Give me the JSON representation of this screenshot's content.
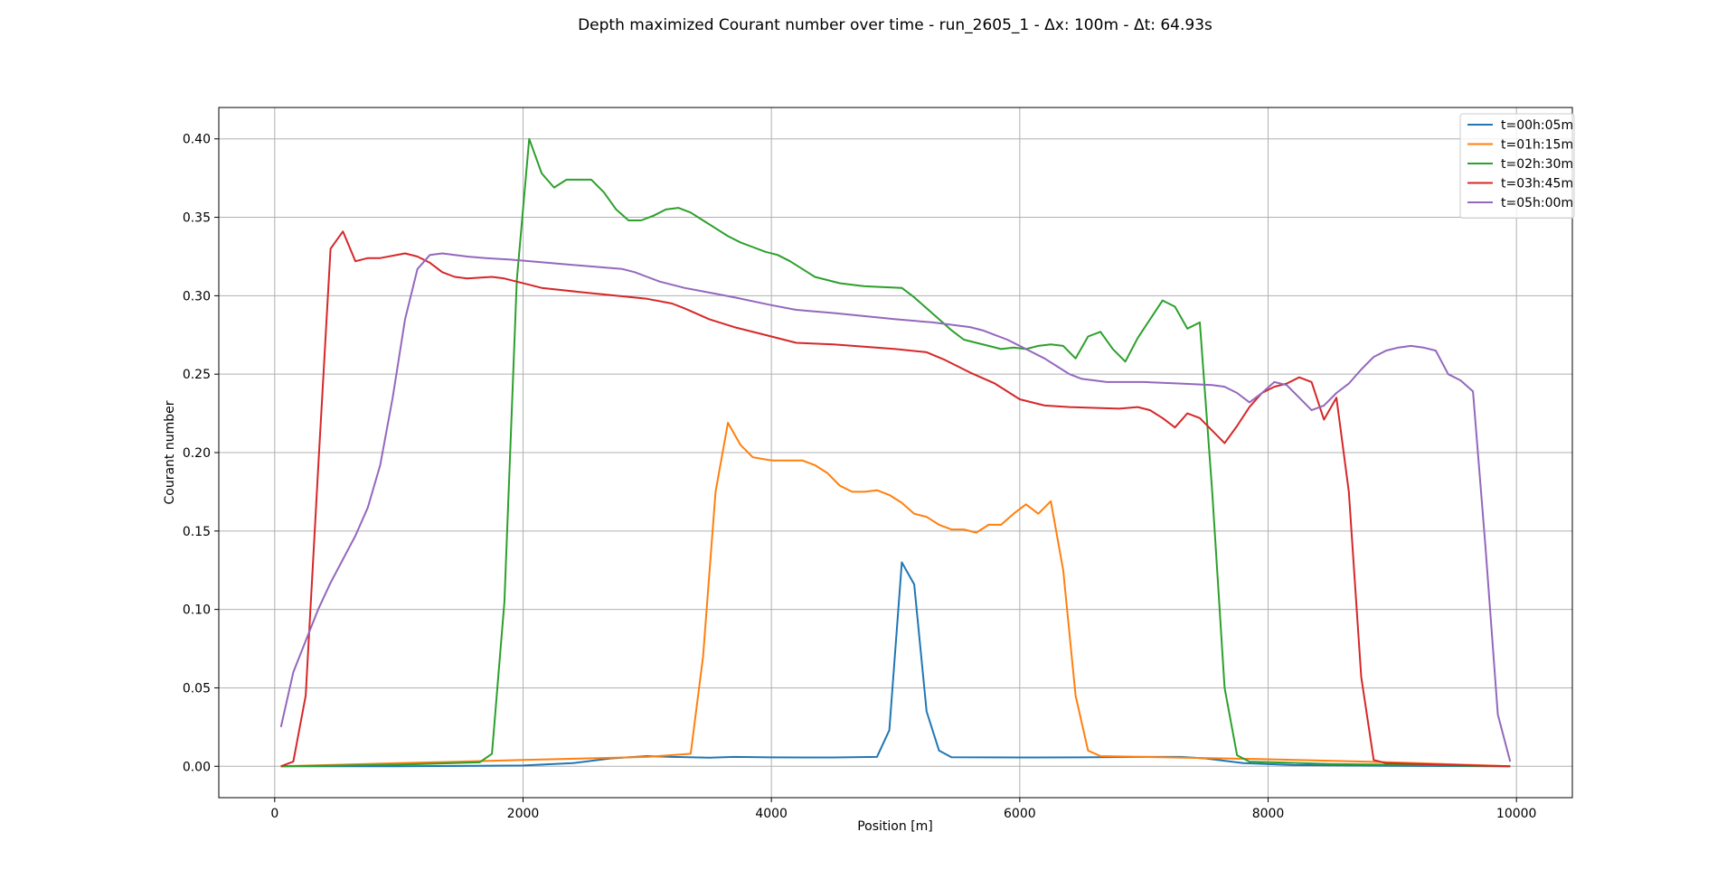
{
  "chart_data": {
    "type": "line",
    "title": "Depth maximized Courant number over time - run_2605_1 - Δx: 100m - Δt: 64.93s",
    "xlabel": "Position [m]",
    "ylabel": "Courant number",
    "xlim": [
      -450,
      10450
    ],
    "ylim": [
      -0.02,
      0.42
    ],
    "xticks": [
      0,
      2000,
      4000,
      6000,
      8000,
      10000
    ],
    "xtick_labels": [
      "0",
      "2000",
      "4000",
      "6000",
      "8000",
      "10000"
    ],
    "yticks": [
      0.0,
      0.05,
      0.1,
      0.15,
      0.2,
      0.25,
      0.3,
      0.35,
      0.4
    ],
    "ytick_labels": [
      "0.00",
      "0.05",
      "0.10",
      "0.15",
      "0.20",
      "0.25",
      "0.30",
      "0.35",
      "0.40"
    ],
    "grid": true,
    "legend_position": "top-right",
    "series": [
      {
        "name": "t=00h:05m",
        "color": "#1f77b4",
        "points": [
          [
            50,
            0.0
          ],
          [
            1000,
            0.0
          ],
          [
            2000,
            0.0005
          ],
          [
            2400,
            0.002
          ],
          [
            2700,
            0.005
          ],
          [
            3000,
            0.0065
          ],
          [
            3200,
            0.006
          ],
          [
            3500,
            0.0055
          ],
          [
            3700,
            0.006
          ],
          [
            4000,
            0.0057
          ],
          [
            4500,
            0.0056
          ],
          [
            4850,
            0.006
          ],
          [
            4950,
            0.023
          ],
          [
            5050,
            0.13
          ],
          [
            5150,
            0.116
          ],
          [
            5250,
            0.035
          ],
          [
            5350,
            0.01
          ],
          [
            5450,
            0.0058
          ],
          [
            6000,
            0.0056
          ],
          [
            6500,
            0.0057
          ],
          [
            7000,
            0.006
          ],
          [
            7300,
            0.006
          ],
          [
            7500,
            0.005
          ],
          [
            7800,
            0.002
          ],
          [
            8200,
            0.0008
          ],
          [
            9000,
            0.0003
          ],
          [
            9950,
            0.0
          ]
        ]
      },
      {
        "name": "t=01h:15m",
        "color": "#ff7f0e",
        "points": [
          [
            50,
            0.0
          ],
          [
            1000,
            0.002
          ],
          [
            2000,
            0.004
          ],
          [
            3000,
            0.006
          ],
          [
            3350,
            0.008
          ],
          [
            3450,
            0.07
          ],
          [
            3550,
            0.175
          ],
          [
            3650,
            0.219
          ],
          [
            3750,
            0.205
          ],
          [
            3850,
            0.197
          ],
          [
            4000,
            0.195
          ],
          [
            4250,
            0.195
          ],
          [
            4350,
            0.192
          ],
          [
            4450,
            0.187
          ],
          [
            4550,
            0.179
          ],
          [
            4650,
            0.175
          ],
          [
            4750,
            0.175
          ],
          [
            4850,
            0.176
          ],
          [
            4950,
            0.173
          ],
          [
            5050,
            0.168
          ],
          [
            5150,
            0.161
          ],
          [
            5250,
            0.159
          ],
          [
            5350,
            0.154
          ],
          [
            5450,
            0.151
          ],
          [
            5550,
            0.151
          ],
          [
            5650,
            0.149
          ],
          [
            5750,
            0.154
          ],
          [
            5850,
            0.154
          ],
          [
            5950,
            0.161
          ],
          [
            6050,
            0.167
          ],
          [
            6150,
            0.161
          ],
          [
            6250,
            0.169
          ],
          [
            6350,
            0.125
          ],
          [
            6450,
            0.045
          ],
          [
            6550,
            0.01
          ],
          [
            6650,
            0.0065
          ],
          [
            7000,
            0.006
          ],
          [
            8000,
            0.0045
          ],
          [
            9000,
            0.0025
          ],
          [
            9950,
            0.0
          ]
        ]
      },
      {
        "name": "t=02h:30m",
        "color": "#2ca02c",
        "points": [
          [
            50,
            0.0
          ],
          [
            1000,
            0.001
          ],
          [
            1650,
            0.0025
          ],
          [
            1750,
            0.008
          ],
          [
            1850,
            0.105
          ],
          [
            1950,
            0.31
          ],
          [
            2050,
            0.4
          ],
          [
            2150,
            0.378
          ],
          [
            2250,
            0.369
          ],
          [
            2350,
            0.374
          ],
          [
            2550,
            0.374
          ],
          [
            2650,
            0.366
          ],
          [
            2750,
            0.355
          ],
          [
            2850,
            0.348
          ],
          [
            2950,
            0.348
          ],
          [
            3050,
            0.351
          ],
          [
            3150,
            0.355
          ],
          [
            3250,
            0.356
          ],
          [
            3350,
            0.353
          ],
          [
            3450,
            0.348
          ],
          [
            3550,
            0.343
          ],
          [
            3650,
            0.338
          ],
          [
            3750,
            0.334
          ],
          [
            3850,
            0.331
          ],
          [
            3950,
            0.328
          ],
          [
            4050,
            0.326
          ],
          [
            4150,
            0.322
          ],
          [
            4250,
            0.317
          ],
          [
            4350,
            0.312
          ],
          [
            4450,
            0.31
          ],
          [
            4550,
            0.308
          ],
          [
            4650,
            0.307
          ],
          [
            4750,
            0.306
          ],
          [
            5050,
            0.305
          ],
          [
            5150,
            0.299
          ],
          [
            5250,
            0.292
          ],
          [
            5350,
            0.285
          ],
          [
            5450,
            0.278
          ],
          [
            5550,
            0.272
          ],
          [
            5650,
            0.27
          ],
          [
            5750,
            0.268
          ],
          [
            5850,
            0.266
          ],
          [
            5950,
            0.267
          ],
          [
            6050,
            0.266
          ],
          [
            6150,
            0.268
          ],
          [
            6250,
            0.269
          ],
          [
            6350,
            0.268
          ],
          [
            6450,
            0.26
          ],
          [
            6550,
            0.274
          ],
          [
            6650,
            0.277
          ],
          [
            6750,
            0.266
          ],
          [
            6850,
            0.258
          ],
          [
            6950,
            0.273
          ],
          [
            7050,
            0.285
          ],
          [
            7150,
            0.297
          ],
          [
            7250,
            0.293
          ],
          [
            7350,
            0.279
          ],
          [
            7450,
            0.283
          ],
          [
            7550,
            0.175
          ],
          [
            7650,
            0.05
          ],
          [
            7750,
            0.007
          ],
          [
            7850,
            0.003
          ],
          [
            8500,
            0.0015
          ],
          [
            9950,
            0.0
          ]
        ]
      },
      {
        "name": "t=03h:45m",
        "color": "#d62728",
        "points": [
          [
            50,
            0.0
          ],
          [
            150,
            0.003
          ],
          [
            250,
            0.045
          ],
          [
            350,
            0.19
          ],
          [
            450,
            0.33
          ],
          [
            550,
            0.341
          ],
          [
            650,
            0.322
          ],
          [
            750,
            0.324
          ],
          [
            850,
            0.324
          ],
          [
            1050,
            0.327
          ],
          [
            1150,
            0.325
          ],
          [
            1250,
            0.321
          ],
          [
            1350,
            0.315
          ],
          [
            1450,
            0.312
          ],
          [
            1550,
            0.311
          ],
          [
            1750,
            0.312
          ],
          [
            1850,
            0.311
          ],
          [
            2050,
            0.307
          ],
          [
            2150,
            0.305
          ],
          [
            2500,
            0.302
          ],
          [
            3000,
            0.298
          ],
          [
            3200,
            0.295
          ],
          [
            3300,
            0.292
          ],
          [
            3500,
            0.285
          ],
          [
            3700,
            0.28
          ],
          [
            4000,
            0.274
          ],
          [
            4200,
            0.27
          ],
          [
            4500,
            0.269
          ],
          [
            5000,
            0.266
          ],
          [
            5250,
            0.264
          ],
          [
            5400,
            0.259
          ],
          [
            5600,
            0.251
          ],
          [
            5800,
            0.244
          ],
          [
            6000,
            0.234
          ],
          [
            6200,
            0.23
          ],
          [
            6400,
            0.229
          ],
          [
            6800,
            0.228
          ],
          [
            6950,
            0.229
          ],
          [
            7050,
            0.227
          ],
          [
            7150,
            0.222
          ],
          [
            7250,
            0.216
          ],
          [
            7350,
            0.225
          ],
          [
            7450,
            0.222
          ],
          [
            7550,
            0.214
          ],
          [
            7650,
            0.206
          ],
          [
            7750,
            0.217
          ],
          [
            7850,
            0.229
          ],
          [
            7950,
            0.238
          ],
          [
            8050,
            0.242
          ],
          [
            8150,
            0.244
          ],
          [
            8250,
            0.248
          ],
          [
            8350,
            0.245
          ],
          [
            8450,
            0.221
          ],
          [
            8550,
            0.235
          ],
          [
            8650,
            0.175
          ],
          [
            8750,
            0.057
          ],
          [
            8850,
            0.004
          ],
          [
            8950,
            0.002
          ],
          [
            9950,
            0.0
          ]
        ]
      },
      {
        "name": "t=05h:00m",
        "color": "#9467bd",
        "points": [
          [
            50,
            0.025
          ],
          [
            150,
            0.06
          ],
          [
            250,
            0.08
          ],
          [
            350,
            0.1
          ],
          [
            450,
            0.117
          ],
          [
            550,
            0.132
          ],
          [
            650,
            0.147
          ],
          [
            750,
            0.165
          ],
          [
            850,
            0.192
          ],
          [
            950,
            0.235
          ],
          [
            1050,
            0.285
          ],
          [
            1150,
            0.317
          ],
          [
            1250,
            0.326
          ],
          [
            1350,
            0.327
          ],
          [
            1450,
            0.326
          ],
          [
            1550,
            0.325
          ],
          [
            1700,
            0.324
          ],
          [
            1900,
            0.323
          ],
          [
            2200,
            0.321
          ],
          [
            2500,
            0.319
          ],
          [
            2800,
            0.317
          ],
          [
            2900,
            0.315
          ],
          [
            3000,
            0.312
          ],
          [
            3100,
            0.309
          ],
          [
            3300,
            0.305
          ],
          [
            3500,
            0.302
          ],
          [
            3700,
            0.299
          ],
          [
            4000,
            0.294
          ],
          [
            4200,
            0.291
          ],
          [
            4500,
            0.289
          ],
          [
            5000,
            0.285
          ],
          [
            5300,
            0.283
          ],
          [
            5600,
            0.28
          ],
          [
            5700,
            0.278
          ],
          [
            5800,
            0.275
          ],
          [
            5900,
            0.272
          ],
          [
            6000,
            0.268
          ],
          [
            6100,
            0.264
          ],
          [
            6200,
            0.26
          ],
          [
            6300,
            0.255
          ],
          [
            6400,
            0.25
          ],
          [
            6500,
            0.247
          ],
          [
            6700,
            0.245
          ],
          [
            7000,
            0.245
          ],
          [
            7300,
            0.244
          ],
          [
            7550,
            0.243
          ],
          [
            7650,
            0.242
          ],
          [
            7750,
            0.238
          ],
          [
            7850,
            0.232
          ],
          [
            7950,
            0.238
          ],
          [
            8050,
            0.245
          ],
          [
            8150,
            0.243
          ],
          [
            8250,
            0.235
          ],
          [
            8350,
            0.227
          ],
          [
            8450,
            0.23
          ],
          [
            8550,
            0.238
          ],
          [
            8650,
            0.244
          ],
          [
            8750,
            0.253
          ],
          [
            8850,
            0.261
          ],
          [
            8950,
            0.265
          ],
          [
            9050,
            0.267
          ],
          [
            9150,
            0.268
          ],
          [
            9250,
            0.267
          ],
          [
            9350,
            0.265
          ],
          [
            9450,
            0.25
          ],
          [
            9550,
            0.246
          ],
          [
            9650,
            0.239
          ],
          [
            9750,
            0.14
          ],
          [
            9850,
            0.033
          ],
          [
            9950,
            0.003
          ]
        ]
      }
    ]
  }
}
